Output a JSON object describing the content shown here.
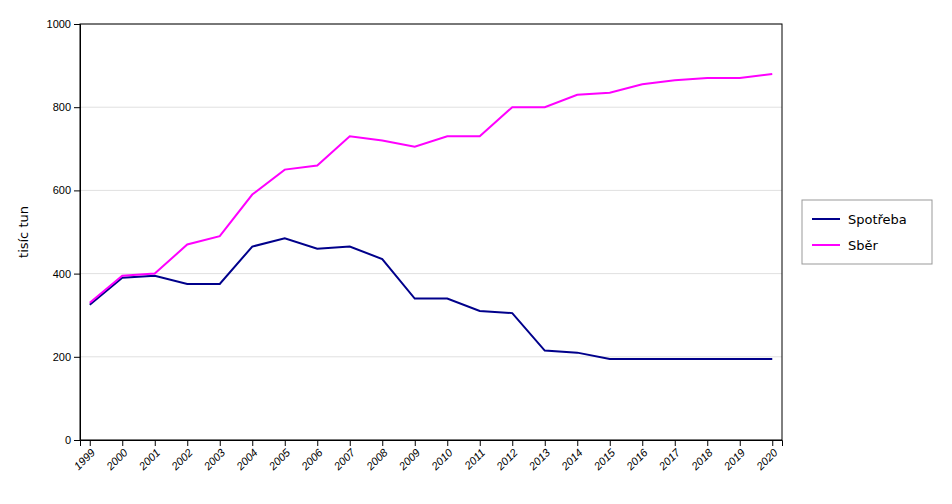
{
  "chart_data": {
    "type": "line",
    "x": [
      1999,
      2000,
      2001,
      2002,
      2003,
      2004,
      2005,
      2006,
      2007,
      2008,
      2009,
      2010,
      2011,
      2012,
      2013,
      2014,
      2015,
      2016,
      2017,
      2018,
      2019,
      2020
    ],
    "series": [
      {
        "name": "Spotřeba",
        "color": "#00008B",
        "values": [
          325,
          390,
          395,
          375,
          375,
          465,
          485,
          460,
          465,
          435,
          340,
          340,
          310,
          305,
          215,
          210,
          195,
          195,
          195,
          195,
          195,
          195
        ]
      },
      {
        "name": "Sběr",
        "color": "#FF00FF",
        "values": [
          330,
          395,
          400,
          470,
          490,
          590,
          650,
          660,
          730,
          720,
          705,
          730,
          730,
          800,
          800,
          830,
          835,
          855,
          865,
          870,
          870,
          880
        ]
      }
    ],
    "ylabel": "tisíc tun",
    "xlim": [
      1998.7,
      2020.3
    ],
    "xticks": [
      1999,
      2000,
      2001,
      2002,
      2003,
      2004,
      2005,
      2006,
      2007,
      2008,
      2009,
      2010,
      2011,
      2012,
      2013,
      2014,
      2015,
      2016,
      2017,
      2018,
      2019,
      2020
    ],
    "ylim": [
      0,
      1000
    ],
    "yticks": [
      0,
      200,
      400,
      600,
      800,
      1000
    ],
    "grid": true,
    "legend": "right"
  }
}
